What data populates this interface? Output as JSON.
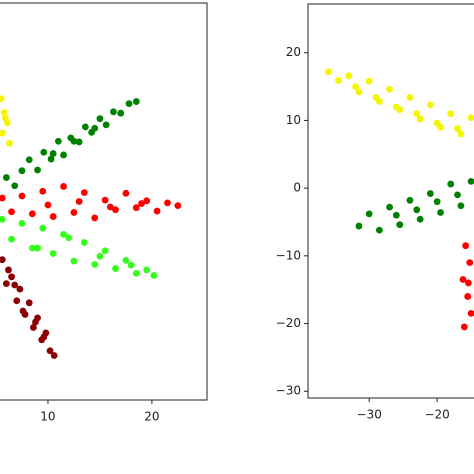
{
  "chart_data": [
    {
      "type": "scatter",
      "xlim": [
        0,
        25.3
      ],
      "ylim": [
        -30,
        28
      ],
      "xticks": [
        10,
        20
      ],
      "series": [
        {
          "color": "#008000",
          "x": [
            6,
            6.8,
            7.5,
            8.2,
            9,
            9.6,
            10.3,
            11,
            11.5,
            12.2,
            13,
            13.6,
            14.2,
            15,
            15.6,
            16.3,
            17,
            17.8,
            18.5,
            12.5,
            10.5,
            14.5
          ],
          "values": [
            2.5,
            1.3,
            3.5,
            5.1,
            3.6,
            6.2,
            5.2,
            7.8,
            5.8,
            8.3,
            7.7,
            9.9,
            9.1,
            11.1,
            10.2,
            12.1,
            11.9,
            13.3,
            13.6,
            7.8,
            6.0,
            9.7
          ]
        },
        {
          "color": "#ff0000",
          "x": [
            5.6,
            6.5,
            7.5,
            8.5,
            9.5,
            10.5,
            11.5,
            12.5,
            13.5,
            14.5,
            15.5,
            16.5,
            17.5,
            18.5,
            19.5,
            20.5,
            21.5,
            22.5,
            10,
            13,
            16,
            19
          ],
          "values": [
            -0.5,
            -2.5,
            -0.2,
            -2.8,
            0.5,
            -3.2,
            1.2,
            -2.6,
            0.3,
            -3.4,
            -0.8,
            -2.2,
            0.2,
            -1.9,
            -0.9,
            -2.4,
            -1.2,
            -1.6,
            -1.5,
            -1.0,
            -1.8,
            -1.3
          ]
        },
        {
          "color": "#33ff1a",
          "x": [
            5.6,
            6.5,
            7.5,
            8.5,
            9.5,
            10.5,
            11.5,
            12.5,
            13.5,
            14.5,
            15.5,
            16.5,
            17.5,
            18.5,
            19.5,
            20.2,
            9,
            12,
            15,
            18
          ],
          "values": [
            -3.6,
            -6.5,
            -4.2,
            -7.8,
            -4.9,
            -8.6,
            -5.8,
            -9.7,
            -7.0,
            -10.2,
            -8.2,
            -10.8,
            -9.6,
            -11.5,
            -11.0,
            -11.8,
            -7.8,
            -6.3,
            -9.0,
            -10.3
          ]
        },
        {
          "color": "#8b0000",
          "x": [
            5.6,
            6.0,
            6.5,
            7.0,
            7.3,
            7.8,
            8.2,
            8.6,
            9.0,
            9.4,
            9.8,
            10.2,
            10.6,
            6.8,
            7.6,
            8.8,
            9.6,
            6.2
          ],
          "values": [
            -9.5,
            -13.0,
            -12.0,
            -15.5,
            -13.8,
            -17.5,
            -15.8,
            -19.4,
            -18.0,
            -21.2,
            -20.2,
            -22.8,
            -23.5,
            -13.2,
            -17.0,
            -18.6,
            -20.8,
            -11.0
          ]
        },
        {
          "color": "#f5f500",
          "x": [
            5.5,
            5.8,
            6.1,
            5.6,
            6.3,
            5.9
          ],
          "values": [
            14.0,
            12.0,
            10.5,
            9.0,
            7.5,
            11.2
          ]
        }
      ]
    },
    {
      "type": "scatter",
      "xlim": [
        -39,
        20
      ],
      "ylim": [
        -31,
        27.2
      ],
      "xticks": [
        {
          "value": -30,
          "label": "−30"
        },
        {
          "value": -20,
          "label": "−20"
        }
      ],
      "yticks": [
        {
          "value": -30,
          "label": "−30"
        },
        {
          "value": -20,
          "label": "−20"
        },
        {
          "value": -10,
          "label": "−10"
        },
        0,
        10,
        20
      ],
      "series": [
        {
          "color": "#f5f500",
          "x": [
            -36,
            -34.5,
            -33,
            -31.5,
            -30,
            -28.5,
            -27,
            -25.5,
            -24,
            -22.5,
            -21,
            -19.5,
            -18,
            -16.5,
            -15,
            -29,
            -26,
            -23,
            -20,
            -17,
            -32
          ],
          "values": [
            17.2,
            15.9,
            16.6,
            14.2,
            15.8,
            12.8,
            14.6,
            11.6,
            13.4,
            10.2,
            12.3,
            9.0,
            11.0,
            8.0,
            10.4,
            13.4,
            12.0,
            11.0,
            9.6,
            8.8,
            15.0
          ]
        },
        {
          "color": "#008000",
          "x": [
            -31.5,
            -30,
            -28.5,
            -27,
            -25.5,
            -24,
            -22.5,
            -21,
            -19.5,
            -18,
            -16.5,
            -15,
            -26,
            -23,
            -20,
            -17
          ],
          "values": [
            -5.6,
            -3.8,
            -6.2,
            -2.8,
            -5.4,
            -1.8,
            -4.6,
            -0.8,
            -3.6,
            0.6,
            -2.6,
            1.0,
            -4.0,
            -3.2,
            -2.0,
            -1.0
          ]
        },
        {
          "color": "#ff0000",
          "x": [
            -15.8,
            -15.2,
            -16.2,
            -15.5,
            -15.0,
            -16.0,
            -15.4
          ],
          "values": [
            -8.5,
            -11,
            -13.5,
            -16,
            -18.5,
            -20.5,
            -14
          ]
        }
      ]
    }
  ]
}
